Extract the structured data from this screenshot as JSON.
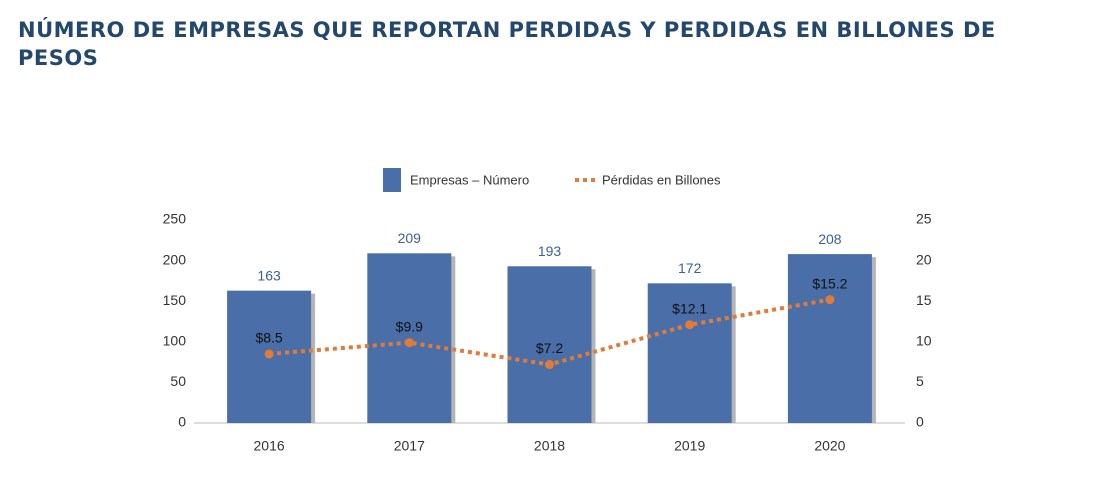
{
  "chart_data": {
    "type": "bar",
    "title": "NÚMERO DE EMPRESAS QUE REPORTAN PERDIDAS Y PERDIDAS EN BILLONES DE PESOS",
    "categories": [
      "2016",
      "2017",
      "2018",
      "2019",
      "2020"
    ],
    "series": [
      {
        "name": "Empresas – Número",
        "type": "bar",
        "color": "#4a6ea8",
        "values": [
          163,
          209,
          193,
          172,
          208
        ]
      },
      {
        "name": "Pérdidas en Billones",
        "type": "line",
        "axis": "y2",
        "color": "#e07b39",
        "values": [
          8.5,
          9.9,
          7.2,
          12.1,
          15.2
        ],
        "value_labels": [
          "$8.5",
          "$9.9",
          "$7.2",
          "$12.1",
          "$15.2"
        ]
      }
    ],
    "ylim": [
      0,
      250
    ],
    "yticks": [
      0,
      50,
      100,
      150,
      200,
      250
    ],
    "y2lim": [
      0,
      25
    ],
    "y2ticks": [
      0,
      5,
      10,
      15,
      20,
      25
    ],
    "grid": false
  }
}
